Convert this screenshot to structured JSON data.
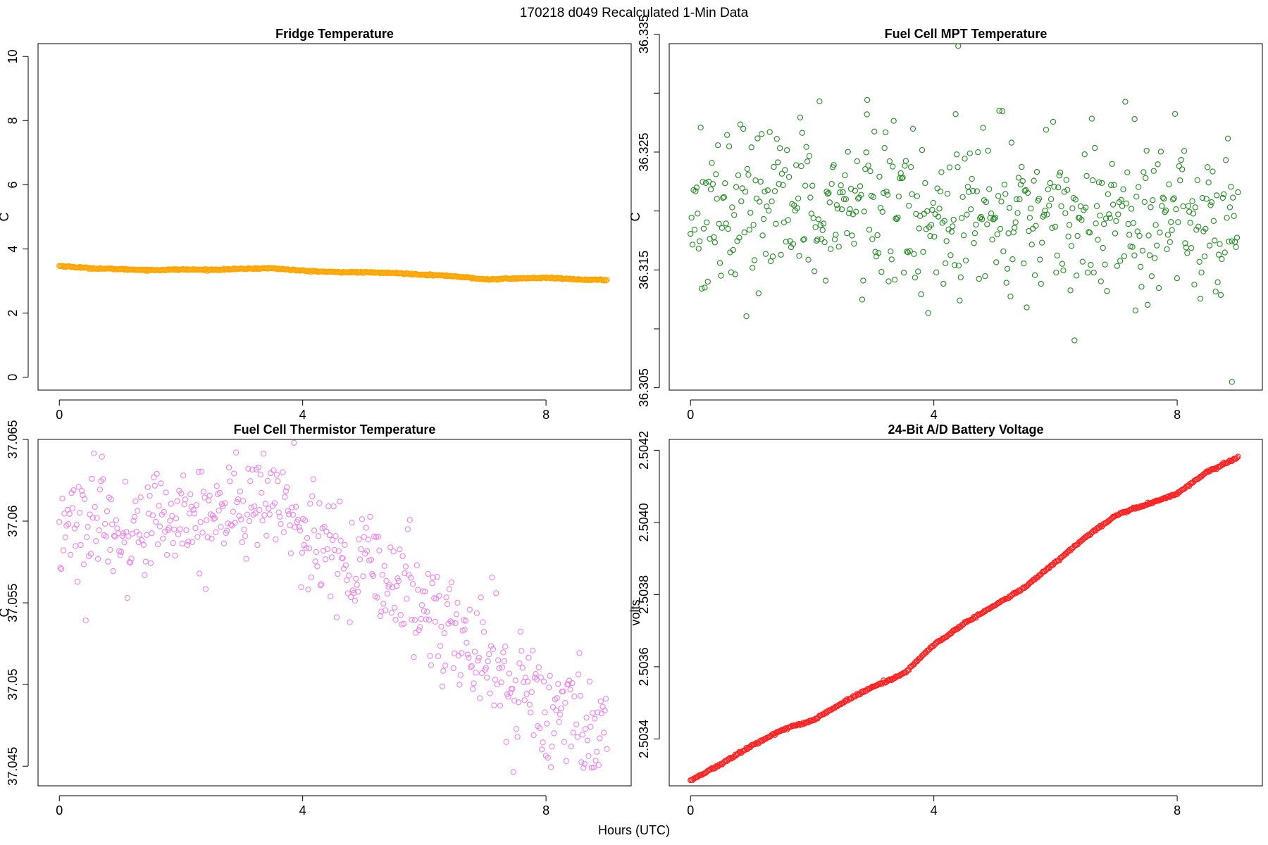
{
  "figure": {
    "title": "170218   d049   Recalculated 1-Min Data",
    "xlabel": "Hours (UTC)"
  },
  "chart_data": [
    {
      "type": "scatter",
      "title": "Fridge Temperature",
      "xlabel": "",
      "ylabel": "C",
      "xlim": [
        -0.35,
        9.4
      ],
      "ylim": [
        -0.4,
        10.4
      ],
      "xticks": [
        0,
        4,
        8
      ],
      "yticks": [
        0,
        2,
        4,
        6,
        8,
        10
      ],
      "color": "#FFA500",
      "x_range": [
        0,
        9.0
      ],
      "n_points": 540,
      "trend": [
        [
          0,
          3.47
        ],
        [
          0.5,
          3.4
        ],
        [
          1.0,
          3.37
        ],
        [
          1.5,
          3.34
        ],
        [
          2.0,
          3.36
        ],
        [
          2.5,
          3.35
        ],
        [
          3.0,
          3.38
        ],
        [
          3.5,
          3.4
        ],
        [
          4.0,
          3.32
        ],
        [
          4.5,
          3.28
        ],
        [
          5.0,
          3.27
        ],
        [
          5.5,
          3.25
        ],
        [
          6.0,
          3.2
        ],
        [
          6.5,
          3.15
        ],
        [
          7.0,
          3.05
        ],
        [
          7.5,
          3.08
        ],
        [
          8.0,
          3.1
        ],
        [
          8.5,
          3.05
        ],
        [
          9.0,
          3.03
        ]
      ],
      "noise": 0.01
    },
    {
      "type": "scatter",
      "title": "Fuel Cell MPT Temperature",
      "xlabel": "",
      "ylabel": "C",
      "xlim": [
        -0.35,
        9.4
      ],
      "ylim": [
        36.3048,
        36.3342
      ],
      "xticks": [
        0,
        4,
        8
      ],
      "yticks": [
        36.305,
        36.31,
        36.315,
        36.32,
        36.325,
        36.33,
        36.335
      ],
      "ytick_labels": [
        "36.305",
        "",
        "36.315",
        "",
        "36.325",
        "",
        "36.335"
      ],
      "color": "#228B22",
      "x_range": [
        0,
        9.0
      ],
      "n_points": 540,
      "trend": [
        [
          0,
          36.3205
        ],
        [
          9.0,
          36.3195
        ]
      ],
      "noise": 0.0035,
      "outliers": [
        [
          4.4,
          36.334
        ],
        [
          4.4,
          36.3357
        ],
        [
          8.9,
          36.3055
        ],
        [
          2.9,
          36.3282
        ],
        [
          7.3,
          36.3278
        ]
      ]
    },
    {
      "type": "scatter",
      "title": "Fuel Cell Thermistor Temperature",
      "xlabel": "",
      "ylabel": "C",
      "xlim": [
        -0.35,
        9.4
      ],
      "ylim": [
        37.0438,
        37.065
      ],
      "xticks": [
        0,
        4,
        8
      ],
      "yticks": [
        37.045,
        37.05,
        37.055,
        37.06,
        37.065
      ],
      "color": "#EE82EE",
      "x_range": [
        0,
        9.0
      ],
      "n_points": 540,
      "trend": [
        [
          0,
          37.0598
        ],
        [
          1.0,
          37.0592
        ],
        [
          2.0,
          37.0604
        ],
        [
          3.0,
          37.0608
        ],
        [
          3.7,
          37.0612
        ],
        [
          4.0,
          37.059
        ],
        [
          5.0,
          37.0572
        ],
        [
          6.0,
          37.0548
        ],
        [
          7.0,
          37.0515
        ],
        [
          8.0,
          37.0485
        ],
        [
          9.0,
          37.047
        ]
      ],
      "noise": 0.0018
    },
    {
      "type": "scatter",
      "title": "24-Bit A/D Battery Voltage",
      "xlabel": "",
      "ylabel": "volts",
      "xlim": [
        -0.35,
        9.4
      ],
      "ylim": [
        2.50327,
        2.50423
      ],
      "xticks": [
        0,
        4,
        8
      ],
      "yticks": [
        2.5034,
        2.5036,
        2.5038,
        2.504,
        2.5042
      ],
      "ytick_labels": [
        "2.5034",
        "2.5036",
        "2.5038",
        "2.5040",
        "2.5042"
      ],
      "color": "#FF2020",
      "x_range": [
        0,
        9.0
      ],
      "n_points": 540,
      "trend": [
        [
          0,
          2.503285
        ],
        [
          0.5,
          2.50333
        ],
        [
          1.0,
          2.50338
        ],
        [
          1.5,
          2.503425
        ],
        [
          2.0,
          2.50345
        ],
        [
          2.5,
          2.5035
        ],
        [
          3.0,
          2.503545
        ],
        [
          3.5,
          2.50358
        ],
        [
          4.0,
          2.50366
        ],
        [
          4.5,
          2.50372
        ],
        [
          5.0,
          2.50377
        ],
        [
          5.5,
          2.50382
        ],
        [
          6.0,
          2.50389
        ],
        [
          6.5,
          2.50396
        ],
        [
          7.0,
          2.50402
        ],
        [
          7.5,
          2.50405
        ],
        [
          8.0,
          2.50408
        ],
        [
          8.5,
          2.50414
        ],
        [
          9.0,
          2.50418
        ]
      ],
      "noise": 1.5e-06
    }
  ]
}
